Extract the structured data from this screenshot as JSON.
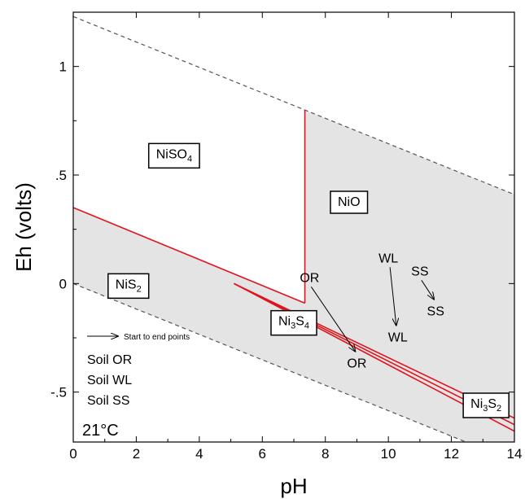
{
  "chart_data": {
    "type": "line",
    "xlabel": "pH",
    "ylabel": "Eh (volts)",
    "xlim": [
      0,
      14
    ],
    "ylim": [
      -0.73,
      1.25
    ],
    "x_ticks": [
      0,
      2,
      4,
      6,
      8,
      10,
      12,
      14
    ],
    "y_ticks": [
      {
        "value": 1.0,
        "label": "1"
      },
      {
        "value": 0.5,
        "label": ".5"
      },
      {
        "value": 0.0,
        "label": "0"
      },
      {
        "value": -0.5,
        "label": "-.5"
      }
    ],
    "grid": false,
    "temperature_label": "21°C",
    "water_stability_lines": [
      {
        "x": [
          0,
          14
        ],
        "y": [
          1.23,
          0.41
        ]
      },
      {
        "x": [
          0,
          14
        ],
        "y": [
          0.0,
          -0.82
        ]
      }
    ],
    "stability_boundaries": [
      {
        "x": [
          0,
          7.35
        ],
        "y": [
          0.35,
          -0.09
        ]
      },
      {
        "x": [
          7.35,
          7.35
        ],
        "y": [
          -0.09,
          0.8
        ]
      },
      {
        "x": [
          5.1,
          14
        ],
        "y": [
          0.0,
          -0.62
        ]
      },
      {
        "x": [
          5.1,
          14
        ],
        "y": [
          0.0,
          -0.65
        ]
      },
      {
        "x": [
          5.1,
          14
        ],
        "y": [
          0.0,
          -0.68
        ]
      }
    ],
    "phase_fields": [
      {
        "name": "NiSO",
        "subscript": "4",
        "x": 3.2,
        "y": 0.6
      },
      {
        "name": "NiO",
        "subscript": "",
        "x": 8.75,
        "y": 0.38
      },
      {
        "name": "NiS",
        "subscript": "2",
        "x": 1.75,
        "y": 0.0
      },
      {
        "name": "Ni",
        "subscript": "3",
        "name2": "S",
        "subscript2": "4",
        "x": 7.0,
        "y": -0.17
      },
      {
        "name": "Ni",
        "subscript": "3",
        "name2": "S",
        "subscript2": "2",
        "x": 13.1,
        "y": -0.55
      }
    ],
    "series": [
      {
        "name": "Soil OR",
        "start": {
          "label": "OR",
          "x": 7.5,
          "y": 0.0
        },
        "end": {
          "label": "OR",
          "x": 9.0,
          "y": -0.32
        }
      },
      {
        "name": "Soil WL",
        "start": {
          "label": "WL",
          "x": 10.0,
          "y": 0.09
        },
        "end": {
          "label": "WL",
          "x": 10.3,
          "y": -0.2
        }
      },
      {
        "name": "Soil SS",
        "start": {
          "label": "SS",
          "x": 11.0,
          "y": 0.03
        },
        "end": {
          "label": "SS",
          "x": 11.5,
          "y": -0.08
        }
      }
    ],
    "legend": {
      "arrow_text": "Start to end points",
      "entries": [
        "Soil OR",
        "Soil WL",
        "Soil SS"
      ],
      "placement": "bottom-left"
    },
    "colors": {
      "boundary": "#e0141e",
      "shade": "#e4e4e4",
      "dashed": "#555555"
    }
  }
}
